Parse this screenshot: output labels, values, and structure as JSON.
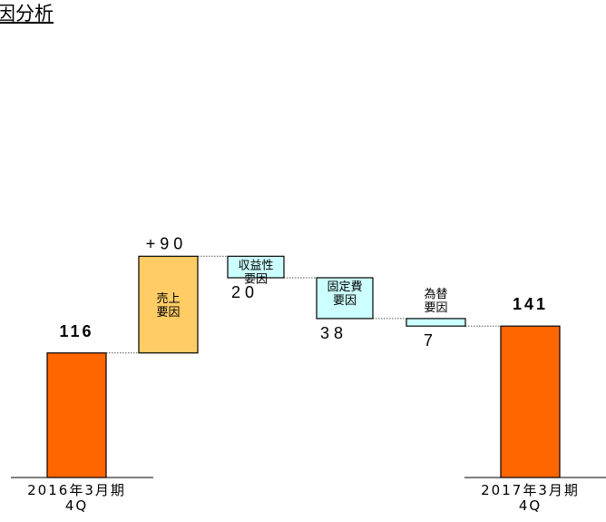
{
  "chart_data": {
    "type": "waterfall",
    "title": "因分析",
    "unit": "",
    "steps": [
      {
        "kind": "total",
        "category": [
          "2016年3月期",
          "4Q"
        ],
        "value": 116,
        "label": "116",
        "color": "#ff6600"
      },
      {
        "kind": "delta",
        "name": [
          "売上",
          "要因"
        ],
        "value": 90,
        "label": "+90",
        "label_pos": "above",
        "color": "#ffcc66"
      },
      {
        "kind": "delta",
        "name": [
          "収益性",
          "要因"
        ],
        "value": -20,
        "label": "20",
        "label_pos": "below",
        "color": "#ccffff"
      },
      {
        "kind": "delta",
        "name": [
          "固定費",
          "要因"
        ],
        "value": -38,
        "label": "38",
        "label_pos": "below",
        "color": "#ccffff"
      },
      {
        "kind": "delta",
        "name": [
          "為替",
          "要因"
        ],
        "value": -7,
        "label": "7",
        "label_pos": "below",
        "name_pos": "above",
        "color": "#ccffff"
      },
      {
        "kind": "total",
        "category": [
          "2017年3月期",
          "4Q"
        ],
        "value": 141,
        "label": "141",
        "color": "#ff6600"
      }
    ],
    "ylim": [
      0,
      206
    ],
    "grid": false,
    "legend": "none"
  }
}
